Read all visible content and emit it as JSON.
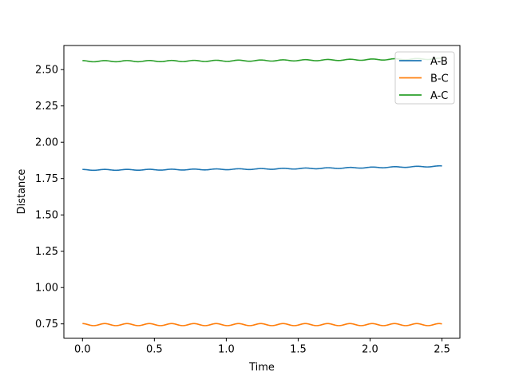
{
  "chart_data": {
    "type": "line",
    "title": "",
    "xlabel": "Time",
    "ylabel": "Distance",
    "xlim": [
      -0.125,
      2.625
    ],
    "ylim": [
      0.655,
      2.665
    ],
    "xticks": [
      0.0,
      0.5,
      1.0,
      1.5,
      2.0,
      2.5
    ],
    "xtick_labels": [
      "0.0",
      "0.5",
      "1.0",
      "1.5",
      "2.0",
      "2.5"
    ],
    "yticks": [
      0.75,
      1.0,
      1.25,
      1.5,
      1.75,
      2.0,
      2.25,
      2.5
    ],
    "ytick_labels": [
      "0.75",
      "1.00",
      "1.25",
      "1.50",
      "1.75",
      "2.00",
      "2.25",
      "2.50"
    ],
    "grid": false,
    "legend_position": "upper right",
    "x": [
      0.0,
      0.25,
      0.5,
      0.75,
      1.0,
      1.25,
      1.5,
      1.75,
      2.0,
      2.25,
      2.5
    ],
    "series": [
      {
        "name": "A-B",
        "color": "#1f77b4",
        "base_start": 1.81,
        "base_end": 1.835,
        "amplitude": 0.003,
        "period": 0.155,
        "values": [
          1.81,
          1.812,
          1.813,
          1.814,
          1.815,
          1.817,
          1.819,
          1.822,
          1.825,
          1.829,
          1.835
        ]
      },
      {
        "name": "B-C",
        "color": "#ff7f0e",
        "base_start": 0.745,
        "base_end": 0.745,
        "amplitude": 0.007,
        "period": 0.155,
        "values": [
          0.75,
          0.745,
          0.745,
          0.745,
          0.745,
          0.745,
          0.745,
          0.745,
          0.745,
          0.745,
          0.745
        ]
      },
      {
        "name": "A-C",
        "color": "#2ca02c",
        "base_start": 2.558,
        "base_end": 2.575,
        "amplitude": 0.004,
        "period": 0.155,
        "values": [
          2.56,
          2.558,
          2.559,
          2.56,
          2.561,
          2.562,
          2.564,
          2.566,
          2.569,
          2.572,
          2.575
        ]
      }
    ]
  }
}
